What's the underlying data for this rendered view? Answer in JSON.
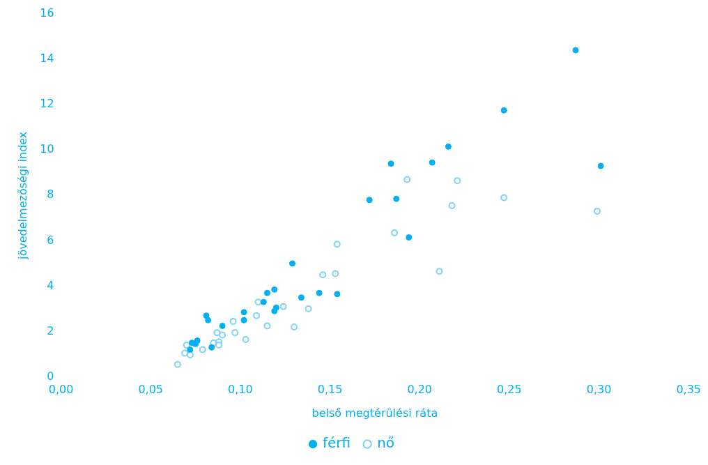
{
  "chart_data": {
    "type": "scatter",
    "xlabel": "belső megtérülési ráta",
    "ylabel": "jövedelmezőségi index",
    "xlim": [
      0,
      0.35
    ],
    "xticks": [
      {
        "value": 0,
        "label": "0,00"
      },
      {
        "value": 0.05,
        "label": "0,05"
      },
      {
        "value": 0.1,
        "label": "0,10"
      },
      {
        "value": 0.15,
        "label": "0,15"
      },
      {
        "value": 0.2,
        "label": "0,20"
      },
      {
        "value": 0.25,
        "label": "0,25"
      },
      {
        "value": 0.3,
        "label": "0,30"
      },
      {
        "value": 0.35,
        "label": "0,35"
      }
    ],
    "ylim": [
      0,
      16
    ],
    "yticks": [
      0,
      2,
      4,
      6,
      8,
      10,
      12,
      14,
      16
    ],
    "grid": false,
    "legend": "bottom",
    "marker": "circle",
    "series": [
      {
        "name": "férfi",
        "color": "#00b0f0",
        "x": [
          0.287,
          0.247,
          0.301,
          0.216,
          0.207,
          0.184,
          0.172,
          0.187,
          0.194,
          0.129,
          0.154,
          0.144,
          0.134,
          0.119,
          0.115,
          0.113,
          0.12,
          0.119,
          0.102,
          0.102,
          0.09,
          0.081,
          0.082,
          0.084,
          0.073,
          0.076,
          0.075,
          0.072
        ],
        "values": [
          14.4,
          11.75,
          9.3,
          10.15,
          9.45,
          9.4,
          7.8,
          7.85,
          6.15,
          5.0,
          3.65,
          3.7,
          3.5,
          3.85,
          3.7,
          3.3,
          3.05,
          2.9,
          2.85,
          2.5,
          2.25,
          2.7,
          2.5,
          1.3,
          1.5,
          1.6,
          1.45,
          1.2
        ]
      },
      {
        "name": "nő",
        "color": "#7fd3f5",
        "x": [
          0.299,
          0.247,
          0.218,
          0.221,
          0.193,
          0.186,
          0.211,
          0.154,
          0.153,
          0.146,
          0.138,
          0.124,
          0.11,
          0.109,
          0.115,
          0.13,
          0.096,
          0.097,
          0.087,
          0.09,
          0.103,
          0.085,
          0.088,
          0.088,
          0.079,
          0.07,
          0.069,
          0.072,
          0.065
        ],
        "values": [
          7.3,
          7.9,
          7.55,
          8.65,
          8.7,
          6.35,
          4.65,
          5.85,
          4.55,
          4.5,
          3.0,
          3.1,
          3.3,
          2.7,
          2.25,
          2.2,
          2.45,
          1.95,
          1.95,
          1.85,
          1.65,
          1.5,
          1.55,
          1.4,
          1.2,
          1.4,
          1.05,
          0.97,
          0.55
        ]
      }
    ]
  }
}
